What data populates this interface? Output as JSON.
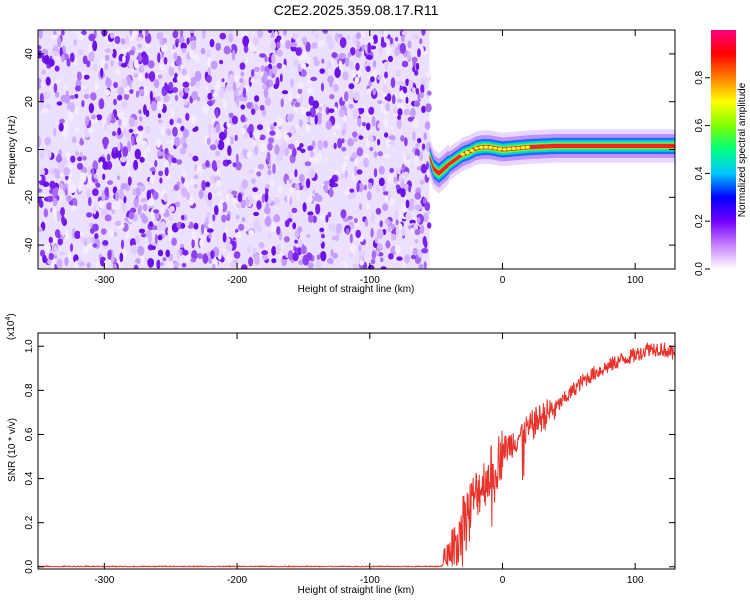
{
  "figure": {
    "title": "C2E2.2025.359.08.17.R11"
  },
  "chart_data": [
    {
      "type": "heatmap",
      "xlabel": "Height of straight line (km)",
      "ylabel": "Frequency (Hz)",
      "xlim": [
        -350,
        130
      ],
      "ylim": [
        -50,
        50
      ],
      "x_ticks": [
        -300,
        -200,
        -100,
        0,
        100
      ],
      "y_ticks": [
        -40,
        -20,
        0,
        20,
        40
      ],
      "noise_region_x": [
        -350,
        -55
      ],
      "signal_track": [
        [
          -55,
          -3
        ],
        [
          -52,
          -8
        ],
        [
          -48,
          -10
        ],
        [
          -44,
          -8
        ],
        [
          -40,
          -6
        ],
        [
          -35,
          -4
        ],
        [
          -30,
          -2
        ],
        [
          -25,
          -1
        ],
        [
          -20,
          0.5
        ],
        [
          -15,
          1
        ],
        [
          -10,
          1
        ],
        [
          -5,
          0.5
        ],
        [
          0,
          0
        ],
        [
          10,
          0.5
        ],
        [
          20,
          1
        ],
        [
          40,
          1.5
        ],
        [
          60,
          1.5
        ],
        [
          80,
          1.5
        ],
        [
          100,
          1.5
        ],
        [
          130,
          1.5
        ]
      ],
      "colorbar": {
        "label": "Normalized spectral amplitude",
        "range": [
          0,
          1
        ],
        "ticks": [
          "0.0",
          "0.2",
          "0.4",
          "0.6",
          "0.8"
        ],
        "colormap": [
          "#ffffff",
          "#c880ff",
          "#7000ff",
          "#0000ff",
          "#00c8ff",
          "#00ff80",
          "#80ff00",
          "#ffff00",
          "#ff8000",
          "#ff0000",
          "#ff0080"
        ]
      }
    },
    {
      "type": "line",
      "xlabel": "Height of straight line (km)",
      "ylabel": "SNR (10 * v/v)",
      "yscale_label": "(x10",
      "yscale_exp": "4",
      "yscale_close": ")",
      "xlim": [
        -350,
        130
      ],
      "ylim": [
        -0.01,
        1.06
      ],
      "x_ticks": [
        -300,
        -200,
        -100,
        0,
        100
      ],
      "y_ticks": [
        "0.0",
        "0.2",
        "0.4",
        "0.6",
        "0.8",
        "1.0"
      ],
      "series_color": "#e8322a",
      "trend": [
        [
          -350,
          0.0
        ],
        [
          -50,
          0.0
        ],
        [
          -40,
          0.01
        ],
        [
          -35,
          0.12
        ],
        [
          -30,
          0.22
        ],
        [
          -20,
          0.33
        ],
        [
          -10,
          0.42
        ],
        [
          0,
          0.52
        ],
        [
          10,
          0.58
        ],
        [
          20,
          0.63
        ],
        [
          30,
          0.68
        ],
        [
          40,
          0.72
        ],
        [
          50,
          0.78
        ],
        [
          60,
          0.84
        ],
        [
          70,
          0.88
        ],
        [
          80,
          0.91
        ],
        [
          90,
          0.94
        ],
        [
          100,
          0.96
        ],
        [
          110,
          0.99
        ],
        [
          120,
          0.99
        ],
        [
          130,
          0.96
        ]
      ]
    }
  ]
}
